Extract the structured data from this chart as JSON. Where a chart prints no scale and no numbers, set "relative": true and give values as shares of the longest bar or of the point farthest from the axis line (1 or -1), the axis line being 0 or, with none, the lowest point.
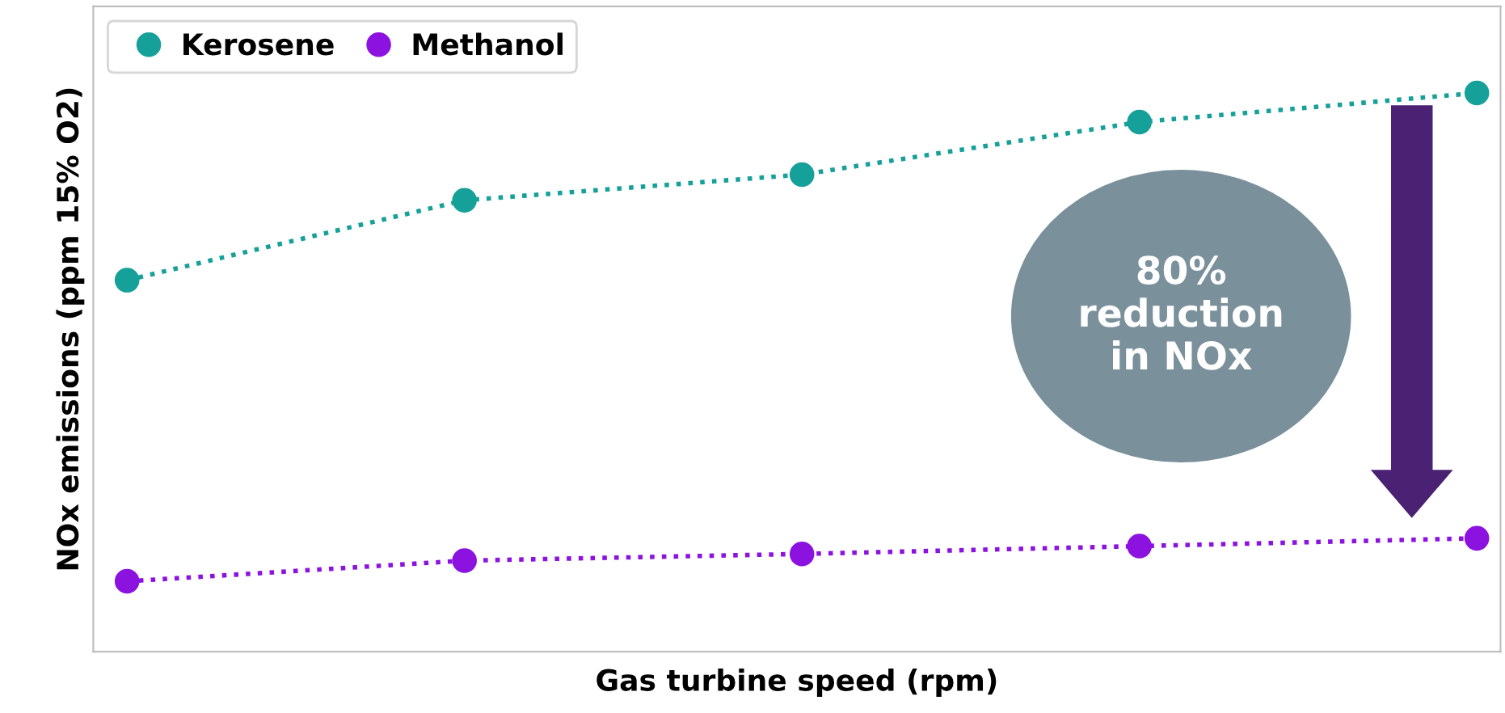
{
  "chart_data": {
    "type": "line",
    "relative": true,
    "xlabel": "Gas turbine speed (rpm)",
    "ylabel": "NOx emissions (ppm 15% O2)",
    "categories": [
      null,
      null,
      null,
      null,
      null
    ],
    "series": [
      {
        "name": "Kerosene",
        "color": "#16a09a",
        "values": [
          0.665,
          0.808,
          0.854,
          0.948,
          1.0
        ]
      },
      {
        "name": "Methanol",
        "color": "#8c12e0",
        "values": [
          0.126,
          0.163,
          0.175,
          0.189,
          0.203
        ]
      }
    ],
    "marker": "circle",
    "line_style": "dotted",
    "legend": "top left",
    "grid": false,
    "annotations": [
      "80%\nreduction\nin NOx"
    ]
  }
}
